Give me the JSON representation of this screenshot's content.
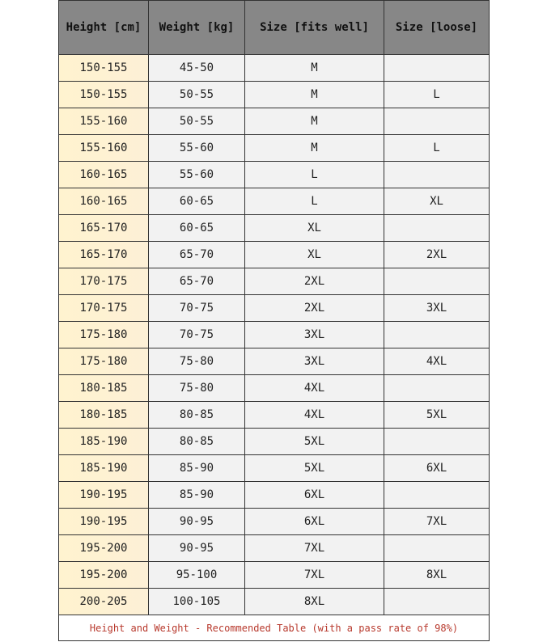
{
  "headers": [
    "Height [cm]",
    "Weight [kg]",
    "Size [fits well]",
    "Size [loose]"
  ],
  "rows": [
    [
      "150-155",
      "45-50",
      "M",
      ""
    ],
    [
      "150-155",
      "50-55",
      "M",
      "L"
    ],
    [
      "155-160",
      "50-55",
      "M",
      ""
    ],
    [
      "155-160",
      "55-60",
      "M",
      "L"
    ],
    [
      "160-165",
      "55-60",
      "L",
      ""
    ],
    [
      "160-165",
      "60-65",
      "L",
      "XL"
    ],
    [
      "165-170",
      "60-65",
      "XL",
      ""
    ],
    [
      "165-170",
      "65-70",
      "XL",
      "2XL"
    ],
    [
      "170-175",
      "65-70",
      "2XL",
      ""
    ],
    [
      "170-175",
      "70-75",
      "2XL",
      "3XL"
    ],
    [
      "175-180",
      "70-75",
      "3XL",
      ""
    ],
    [
      "175-180",
      "75-80",
      "3XL",
      "4XL"
    ],
    [
      "180-185",
      "75-80",
      "4XL",
      ""
    ],
    [
      "180-185",
      "80-85",
      "4XL",
      "5XL"
    ],
    [
      "185-190",
      "80-85",
      "5XL",
      ""
    ],
    [
      "185-190",
      "85-90",
      "5XL",
      "6XL"
    ],
    [
      "190-195",
      "85-90",
      "6XL",
      ""
    ],
    [
      "190-195",
      "90-95",
      "6XL",
      "7XL"
    ],
    [
      "195-200",
      "90-95",
      "7XL",
      ""
    ],
    [
      "195-200",
      "95-100",
      "7XL",
      "8XL"
    ],
    [
      "200-205",
      "100-105",
      "8XL",
      ""
    ]
  ],
  "footer": "Height and Weight - Recommended Table (with a pass rate of 98%)",
  "colors": {
    "header_bg": "#878787",
    "height_col_bg": "#fff3cf",
    "cell_bg": "#f2f2f2",
    "footer_text": "#b83a2e"
  }
}
